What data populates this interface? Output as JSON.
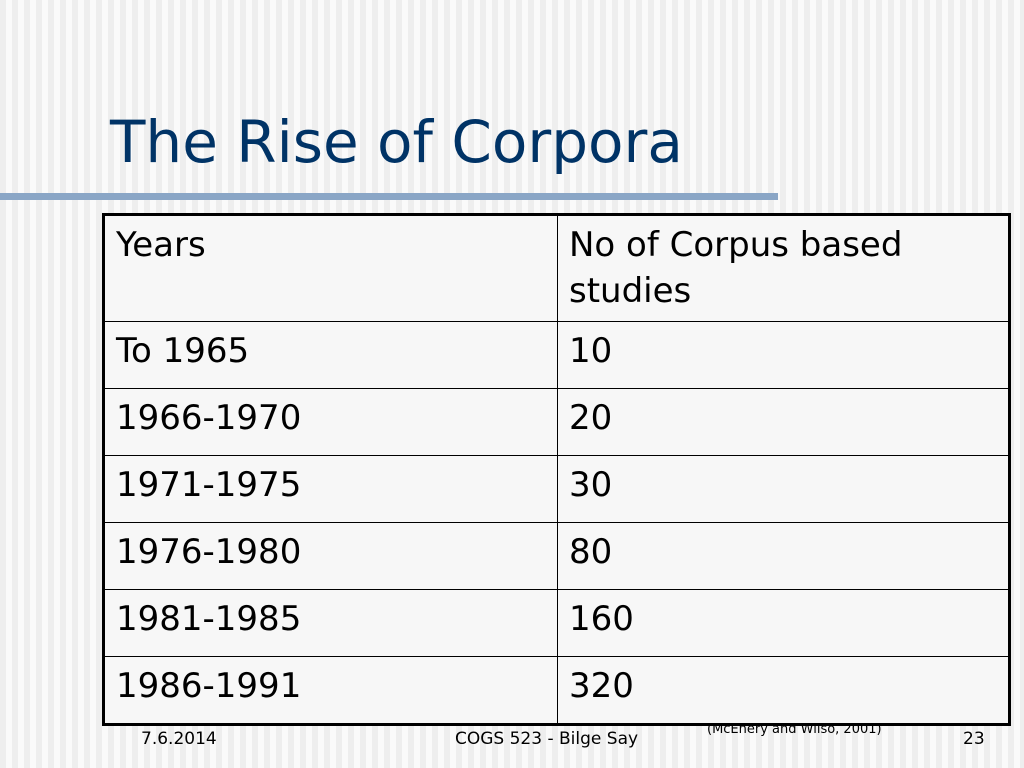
{
  "slide": {
    "title": "The Rise of Corpora"
  },
  "table": {
    "headers": [
      "Years",
      "No of Corpus based studies"
    ],
    "rows": [
      {
        "years": "To 1965",
        "count": "10"
      },
      {
        "years": "1966-1970",
        "count": "20"
      },
      {
        "years": "1971-1975",
        "count": "30"
      },
      {
        "years": "1976-1980",
        "count": "80"
      },
      {
        "years": "1981-1985",
        "count": "160"
      },
      {
        "years": "1986-1991",
        "count": "320"
      }
    ]
  },
  "footer": {
    "date": "7.6.2014",
    "course": "COGS 523 - Bilge Say",
    "page": "23",
    "citation": "(McEnery and Wilso, 2001)"
  },
  "colors": {
    "title": "#003366",
    "rule": "#8aa6c6"
  }
}
